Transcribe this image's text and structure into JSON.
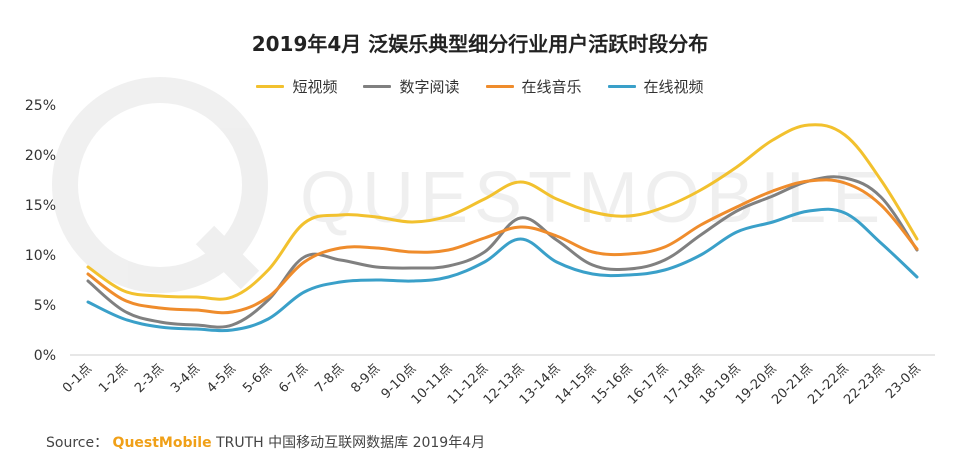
{
  "chart_data": {
    "type": "line",
    "title": "2019年4月 泛娱乐典型细分行业用户活跃时段分布",
    "categories": [
      "0-1点",
      "1-2点",
      "2-3点",
      "3-4点",
      "4-5点",
      "5-6点",
      "6-7点",
      "7-8点",
      "8-9点",
      "9-10点",
      "10-11点",
      "11-12点",
      "12-13点",
      "13-14点",
      "14-15点",
      "15-16点",
      "16-17点",
      "17-18点",
      "18-19点",
      "19-20点",
      "20-21点",
      "21-22点",
      "22-23点",
      "23-0点"
    ],
    "yticks": [
      "0%",
      "5%",
      "10%",
      "15%",
      "20%",
      "25%"
    ],
    "ylim": [
      0,
      25
    ],
    "grid": false,
    "legend_position": "top",
    "series": [
      {
        "name": "短视频",
        "color": "#f2c12e",
        "values": [
          8.8,
          6.4,
          5.9,
          5.8,
          5.8,
          8.5,
          13.2,
          14.0,
          13.8,
          13.3,
          13.9,
          15.6,
          17.3,
          15.6,
          14.3,
          13.9,
          14.8,
          16.5,
          18.8,
          21.5,
          23.0,
          22.0,
          17.5,
          11.6
        ]
      },
      {
        "name": "数字阅读",
        "color": "#808080",
        "values": [
          7.4,
          4.4,
          3.3,
          3.0,
          3.0,
          5.5,
          9.8,
          9.5,
          8.8,
          8.7,
          8.9,
          10.3,
          13.7,
          11.5,
          9.0,
          8.6,
          9.5,
          12.0,
          14.4,
          15.9,
          17.4,
          17.7,
          15.8,
          10.5
        ]
      },
      {
        "name": "在线音乐",
        "color": "#ef8c2c",
        "values": [
          8.1,
          5.5,
          4.7,
          4.5,
          4.3,
          5.8,
          9.3,
          10.7,
          10.7,
          10.3,
          10.5,
          11.7,
          12.8,
          11.9,
          10.3,
          10.1,
          10.8,
          13.0,
          14.8,
          16.4,
          17.4,
          17.2,
          15.0,
          10.6
        ]
      },
      {
        "name": "在线视频",
        "color": "#3aa0c9",
        "values": [
          5.3,
          3.6,
          2.8,
          2.6,
          2.5,
          3.6,
          6.3,
          7.3,
          7.5,
          7.4,
          7.8,
          9.3,
          11.6,
          9.3,
          8.1,
          8.0,
          8.5,
          10.0,
          12.3,
          13.3,
          14.4,
          14.2,
          11.2,
          7.8
        ]
      }
    ]
  },
  "source": {
    "prefix": "Source：",
    "brand": "QuestMobile",
    "suffix": "TRUTH 中国移动互联网数据库 2019年4月"
  },
  "watermark": {
    "text": "QUESTMOBILE"
  }
}
